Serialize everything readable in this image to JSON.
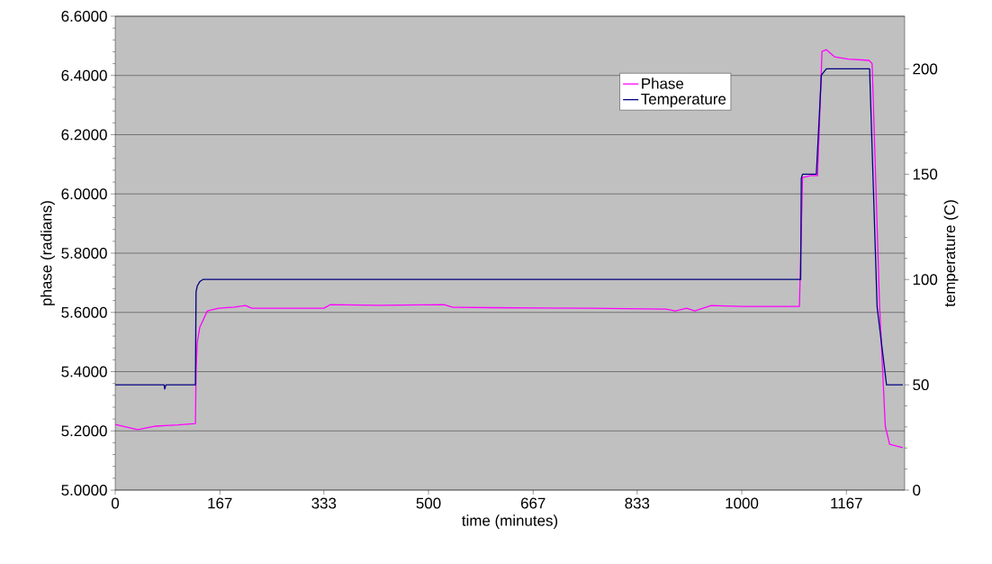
{
  "chart_data": {
    "type": "line",
    "xlabel": "time (minutes)",
    "ylabel": "phase (radians)",
    "y2label": "temperature (C)",
    "xlim": [
      0,
      1260
    ],
    "xticks": [
      0,
      167,
      333,
      500,
      667,
      833,
      1000,
      1167
    ],
    "ylim": [
      5.0,
      6.6
    ],
    "yticks": [
      {
        "value": 5.0,
        "label": "5.0000"
      },
      {
        "value": 5.2,
        "label": "5.2000"
      },
      {
        "value": 5.4,
        "label": "5.4000"
      },
      {
        "value": 5.6,
        "label": "5.6000"
      },
      {
        "value": 5.8,
        "label": "5.8000"
      },
      {
        "value": 6.0,
        "label": "6.0000"
      },
      {
        "value": 6.2,
        "label": "6.2000"
      },
      {
        "value": 6.4,
        "label": "6.4000"
      },
      {
        "value": 6.6,
        "label": "6.6000"
      }
    ],
    "y2lim": [
      0,
      225
    ],
    "y2ticks": [
      0,
      50,
      100,
      150,
      200
    ],
    "grid": "y",
    "legend": "top right",
    "series": [
      {
        "name": "Phase",
        "color": "#ff00ff",
        "x": [
          0,
          20,
          36,
          50,
          65,
          80,
          100,
          128,
          129,
          131,
          135,
          147,
          165,
          190,
          208,
          218,
          260,
          333,
          343,
          420,
          525,
          539,
          600,
          678,
          760,
          879,
          894,
          912,
          925,
          951,
          1000,
          1092,
          1097,
          1110,
          1121,
          1128,
          1135,
          1148,
          1170,
          1203,
          1208,
          1220,
          1229,
          1236,
          1257
        ],
        "values": [
          5.222,
          5.212,
          5.204,
          5.21,
          5.216,
          5.218,
          5.22,
          5.225,
          5.4,
          5.5,
          5.55,
          5.605,
          5.614,
          5.618,
          5.623,
          5.614,
          5.614,
          5.614,
          5.626,
          5.624,
          5.626,
          5.617,
          5.616,
          5.615,
          5.614,
          5.611,
          5.605,
          5.614,
          5.605,
          5.623,
          5.62,
          5.62,
          6.055,
          6.062,
          6.062,
          6.481,
          6.487,
          6.463,
          6.455,
          6.451,
          6.44,
          5.62,
          5.216,
          5.155,
          5.143
        ]
      },
      {
        "name": "Temperature",
        "color": "#000080",
        "axis": "y2",
        "x": [
          0,
          78,
          79,
          81,
          128,
          129,
          131,
          135,
          140,
          200,
          600,
          1094,
          1095,
          1097,
          1119,
          1127,
          1135,
          1150,
          1170,
          1204,
          1216,
          1231,
          1257
        ],
        "values": [
          50,
          50,
          48,
          50,
          50,
          94,
          97,
          99,
          100,
          100,
          100,
          100,
          148,
          150,
          150,
          197,
          200,
          200,
          200,
          200,
          87,
          50,
          50
        ]
      }
    ]
  }
}
